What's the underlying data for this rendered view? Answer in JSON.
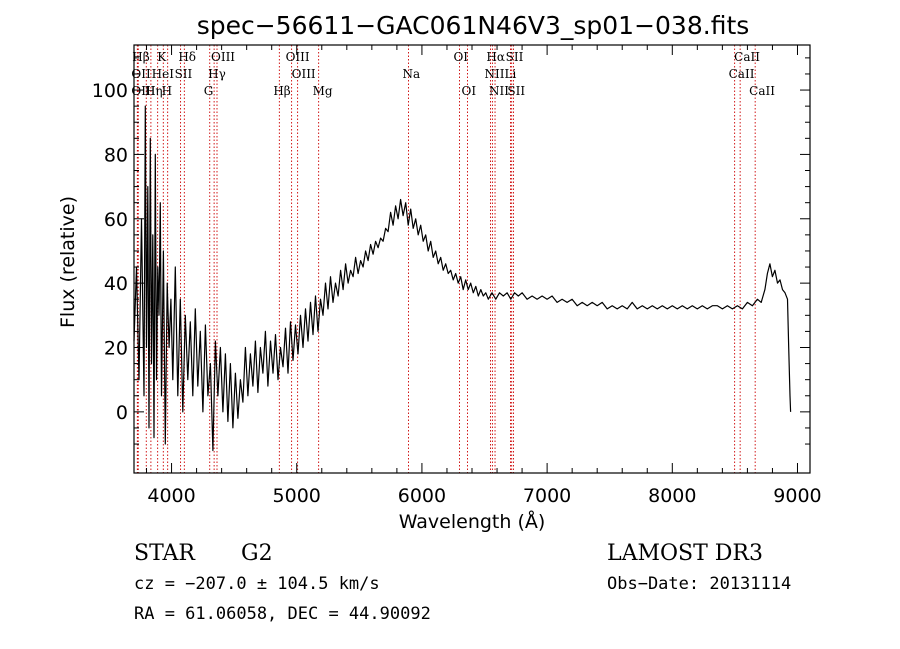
{
  "chart_data": {
    "type": "line",
    "title": "spec−56611−GAC061N46V3_sp01−038.fits",
    "xlabel": "Wavelength (Å)",
    "ylabel": "Flux (relative)",
    "xlim": [
      3700,
      9100
    ],
    "ylim": [
      -19,
      114
    ],
    "xticks": [
      4000,
      5000,
      6000,
      7000,
      8000,
      9000
    ],
    "yticks": [
      0,
      20,
      40,
      60,
      80,
      100
    ],
    "grid": false,
    "series": [
      {
        "name": "flux",
        "color": "#000000",
        "points": [
          [
            3700,
            22
          ],
          [
            3720,
            45
          ],
          [
            3740,
            10
          ],
          [
            3760,
            60
          ],
          [
            3780,
            5
          ],
          [
            3790,
            95
          ],
          [
            3800,
            20
          ],
          [
            3810,
            70
          ],
          [
            3820,
            -5
          ],
          [
            3830,
            85
          ],
          [
            3840,
            15
          ],
          [
            3850,
            55
          ],
          [
            3860,
            -8
          ],
          [
            3870,
            80
          ],
          [
            3880,
            10
          ],
          [
            3890,
            45
          ],
          [
            3900,
            30
          ],
          [
            3910,
            65
          ],
          [
            3920,
            5
          ],
          [
            3935,
            50
          ],
          [
            3950,
            -10
          ],
          [
            3965,
            40
          ],
          [
            3980,
            20
          ],
          [
            3995,
            35
          ],
          [
            4010,
            10
          ],
          [
            4030,
            45
          ],
          [
            4050,
            5
          ],
          [
            4070,
            35
          ],
          [
            4090,
            0
          ],
          [
            4110,
            30
          ],
          [
            4130,
            10
          ],
          [
            4150,
            28
          ],
          [
            4170,
            5
          ],
          [
            4190,
            32
          ],
          [
            4210,
            8
          ],
          [
            4230,
            25
          ],
          [
            4250,
            0
          ],
          [
            4270,
            27
          ],
          [
            4290,
            5
          ],
          [
            4310,
            15
          ],
          [
            4330,
            -12
          ],
          [
            4350,
            22
          ],
          [
            4370,
            5
          ],
          [
            4390,
            20
          ],
          [
            4410,
            0
          ],
          [
            4430,
            18
          ],
          [
            4450,
            -3
          ],
          [
            4470,
            15
          ],
          [
            4490,
            -5
          ],
          [
            4510,
            12
          ],
          [
            4530,
            -2
          ],
          [
            4550,
            10
          ],
          [
            4570,
            3
          ],
          [
            4590,
            20
          ],
          [
            4610,
            5
          ],
          [
            4630,
            18
          ],
          [
            4650,
            8
          ],
          [
            4670,
            22
          ],
          [
            4690,
            6
          ],
          [
            4710,
            20
          ],
          [
            4730,
            12
          ],
          [
            4750,
            25
          ],
          [
            4770,
            8
          ],
          [
            4790,
            22
          ],
          [
            4810,
            12
          ],
          [
            4830,
            24
          ],
          [
            4850,
            10
          ],
          [
            4870,
            20
          ],
          [
            4890,
            14
          ],
          [
            4910,
            26
          ],
          [
            4930,
            12
          ],
          [
            4950,
            28
          ],
          [
            4970,
            16
          ],
          [
            4990,
            27
          ],
          [
            5010,
            18
          ],
          [
            5030,
            30
          ],
          [
            5050,
            20
          ],
          [
            5070,
            32
          ],
          [
            5090,
            22
          ],
          [
            5110,
            34
          ],
          [
            5130,
            24
          ],
          [
            5150,
            36
          ],
          [
            5170,
            25
          ],
          [
            5190,
            35
          ],
          [
            5210,
            30
          ],
          [
            5230,
            40
          ],
          [
            5250,
            32
          ],
          [
            5270,
            42
          ],
          [
            5290,
            34
          ],
          [
            5310,
            40
          ],
          [
            5330,
            36
          ],
          [
            5350,
            44
          ],
          [
            5370,
            38
          ],
          [
            5390,
            46
          ],
          [
            5410,
            40
          ],
          [
            5430,
            44
          ],
          [
            5450,
            42
          ],
          [
            5470,
            48
          ],
          [
            5490,
            43
          ],
          [
            5510,
            47
          ],
          [
            5530,
            45
          ],
          [
            5550,
            50
          ],
          [
            5570,
            47
          ],
          [
            5590,
            52
          ],
          [
            5610,
            49
          ],
          [
            5630,
            53
          ],
          [
            5650,
            51
          ],
          [
            5670,
            54
          ],
          [
            5690,
            53
          ],
          [
            5710,
            57
          ],
          [
            5730,
            56
          ],
          [
            5750,
            62
          ],
          [
            5770,
            58
          ],
          [
            5790,
            64
          ],
          [
            5810,
            60
          ],
          [
            5830,
            66
          ],
          [
            5850,
            61
          ],
          [
            5870,
            65
          ],
          [
            5890,
            58
          ],
          [
            5910,
            63
          ],
          [
            5930,
            57
          ],
          [
            5950,
            60
          ],
          [
            5970,
            55
          ],
          [
            5990,
            58
          ],
          [
            6010,
            53
          ],
          [
            6030,
            55
          ],
          [
            6050,
            50
          ],
          [
            6070,
            53
          ],
          [
            6090,
            48
          ],
          [
            6110,
            50
          ],
          [
            6130,
            46
          ],
          [
            6150,
            48
          ],
          [
            6170,
            44
          ],
          [
            6190,
            46
          ],
          [
            6210,
            43
          ],
          [
            6230,
            44
          ],
          [
            6250,
            41
          ],
          [
            6270,
            43
          ],
          [
            6290,
            40
          ],
          [
            6310,
            42
          ],
          [
            6330,
            38
          ],
          [
            6350,
            41
          ],
          [
            6370,
            38
          ],
          [
            6390,
            40
          ],
          [
            6410,
            37
          ],
          [
            6430,
            39
          ],
          [
            6450,
            36
          ],
          [
            6470,
            38
          ],
          [
            6490,
            36
          ],
          [
            6510,
            37
          ],
          [
            6530,
            35
          ],
          [
            6560,
            37
          ],
          [
            6590,
            35
          ],
          [
            6620,
            37
          ],
          [
            6650,
            36
          ],
          [
            6680,
            37
          ],
          [
            6710,
            35
          ],
          [
            6740,
            37
          ],
          [
            6770,
            36
          ],
          [
            6800,
            37
          ],
          [
            6840,
            35
          ],
          [
            6880,
            36
          ],
          [
            6920,
            35
          ],
          [
            6960,
            36
          ],
          [
            7000,
            35
          ],
          [
            7040,
            36
          ],
          [
            7080,
            34
          ],
          [
            7120,
            35
          ],
          [
            7160,
            34
          ],
          [
            7200,
            35
          ],
          [
            7240,
            33
          ],
          [
            7280,
            34
          ],
          [
            7320,
            33
          ],
          [
            7360,
            34
          ],
          [
            7400,
            33
          ],
          [
            7440,
            34
          ],
          [
            7480,
            32
          ],
          [
            7520,
            33
          ],
          [
            7560,
            32
          ],
          [
            7600,
            33
          ],
          [
            7640,
            32
          ],
          [
            7680,
            34
          ],
          [
            7720,
            32
          ],
          [
            7760,
            33
          ],
          [
            7800,
            32
          ],
          [
            7840,
            33
          ],
          [
            7880,
            32
          ],
          [
            7920,
            33
          ],
          [
            7960,
            32
          ],
          [
            8000,
            33
          ],
          [
            8040,
            32
          ],
          [
            8080,
            33
          ],
          [
            8120,
            32
          ],
          [
            8160,
            33
          ],
          [
            8200,
            32
          ],
          [
            8240,
            33
          ],
          [
            8280,
            32
          ],
          [
            8320,
            33
          ],
          [
            8360,
            33
          ],
          [
            8400,
            32
          ],
          [
            8440,
            33
          ],
          [
            8480,
            32
          ],
          [
            8520,
            33
          ],
          [
            8560,
            32
          ],
          [
            8600,
            34
          ],
          [
            8640,
            33
          ],
          [
            8680,
            35
          ],
          [
            8710,
            34
          ],
          [
            8740,
            38
          ],
          [
            8760,
            43
          ],
          [
            8780,
            46
          ],
          [
            8800,
            42
          ],
          [
            8820,
            44
          ],
          [
            8840,
            40
          ],
          [
            8860,
            41
          ],
          [
            8880,
            38
          ],
          [
            8900,
            37
          ],
          [
            8920,
            35
          ],
          [
            8930,
            20
          ],
          [
            8940,
            5
          ],
          [
            8945,
            0
          ]
        ]
      }
    ],
    "lines": [
      {
        "label": "Hβ",
        "x": 3734
      },
      {
        "label": "K",
        "x": 3934
      },
      {
        "label": "Hδ",
        "x": 4102
      },
      {
        "label": "OIII",
        "x": 4363
      },
      {
        "label": "OIII",
        "x": 4959
      },
      {
        "label": "OI",
        "x": 6300
      },
      {
        "label": "Hα",
        "x": 6563
      },
      {
        "label": "SII",
        "x": 6717
      },
      {
        "label": "CaII",
        "x": 8542
      },
      {
        "label": "OII",
        "x": 3727
      },
      {
        "label": "HeI",
        "x": 3889
      },
      {
        "label": "SII",
        "x": 4072
      },
      {
        "label": "Hγ",
        "x": 4340
      },
      {
        "label": "OIII",
        "x": 5007
      },
      {
        "label": "Na",
        "x": 5893
      },
      {
        "label": "NII",
        "x": 6548
      },
      {
        "label": "Li",
        "x": 6708
      },
      {
        "label": "CaII",
        "x": 8498
      },
      {
        "label": "OIII",
        "x": 3727
      },
      {
        "label": "Hη",
        "x": 3835
      },
      {
        "label": "H",
        "x": 3969
      },
      {
        "label": "G",
        "x": 4305
      },
      {
        "label": "Hβ",
        "x": 4861
      },
      {
        "label": "Mg",
        "x": 5175
      },
      {
        "label": "OI",
        "x": 6364
      },
      {
        "label": "NII",
        "x": 6584
      },
      {
        "label": "SII",
        "x": 6731
      },
      {
        "label": "CaII",
        "x": 8662
      },
      {
        "label": "",
        "x": 3798
      }
    ],
    "line_color": "#cc0000"
  },
  "info": {
    "object": "STAR",
    "subclass": "G2",
    "survey": "LAMOST DR3",
    "cz": "cz = −207.0 ± 104.5 km/s",
    "obs_date": "Obs−Date: 20131114",
    "coords": "RA =  61.06058, DEC =  44.90092"
  }
}
